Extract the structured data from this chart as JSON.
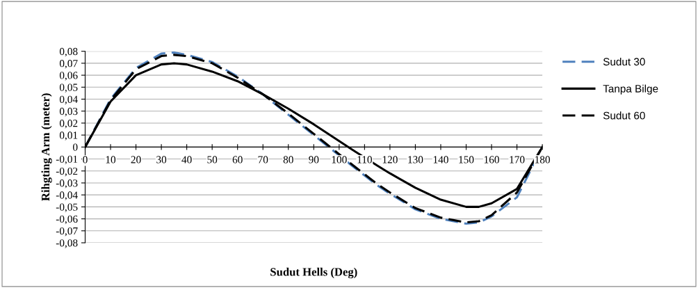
{
  "chart_data": {
    "type": "line",
    "xlabel": "Sudut Hells (Deg)",
    "ylabel": "Rihgting Arm (meter)",
    "x": [
      0,
      10,
      20,
      30,
      35,
      40,
      50,
      60,
      70,
      80,
      90,
      95,
      105,
      115,
      120,
      130,
      140,
      150,
      155,
      160,
      170,
      180
    ],
    "series": [
      {
        "name": "Sudut 30",
        "color": "#4f81bd",
        "line_style": "dashed",
        "values": [
          0,
          0.04,
          0.066,
          0.078,
          0.079,
          0.077,
          0.071,
          0.059,
          0.044,
          0.027,
          0.01,
          0.0015,
          -0.0155,
          -0.032,
          -0.039,
          -0.052,
          -0.06,
          -0.064,
          -0.063,
          -0.058,
          -0.042,
          0
        ]
      },
      {
        "name": "Tanpa Bilge",
        "color": "#000000",
        "line_style": "solid",
        "values": [
          0,
          0.038,
          0.06,
          0.069,
          0.07,
          0.069,
          0.063,
          0.055,
          0.044,
          0.032,
          0.019,
          0.012,
          -0.002,
          -0.0155,
          -0.022,
          -0.034,
          -0.044,
          -0.05,
          -0.05,
          -0.047,
          -0.035,
          0
        ]
      },
      {
        "name": "Sudut 60",
        "color": "#000000",
        "line_style": "dashed",
        "values": [
          0,
          0.039,
          0.065,
          0.076,
          0.077,
          0.076,
          0.07,
          0.058,
          0.044,
          0.028,
          0.011,
          0.0025,
          -0.0145,
          -0.031,
          -0.038,
          -0.051,
          -0.059,
          -0.063,
          -0.062,
          -0.057,
          -0.038,
          0
        ]
      }
    ],
    "xlim": [
      0,
      180
    ],
    "xticks": [
      0,
      10,
      20,
      30,
      40,
      50,
      60,
      70,
      80,
      90,
      100,
      110,
      120,
      130,
      140,
      150,
      160,
      170,
      180
    ],
    "ylim": [
      -0.08,
      0.08
    ],
    "yticks": [
      {
        "value": -0.08,
        "label": "-0,08"
      },
      {
        "value": -0.07,
        "label": "-0,07"
      },
      {
        "value": -0.06,
        "label": "-0,06"
      },
      {
        "value": -0.05,
        "label": "-0,05"
      },
      {
        "value": -0.04,
        "label": "-0,04"
      },
      {
        "value": -0.03,
        "label": "-0,03"
      },
      {
        "value": -0.02,
        "label": "-0,02"
      },
      {
        "value": -0.01,
        "label": "-0,01"
      },
      0,
      {
        "value": 0.01,
        "label": "0,01"
      },
      {
        "value": 0.02,
        "label": "0,02"
      },
      {
        "value": 0.03,
        "label": "0,03"
      },
      {
        "value": 0.04,
        "label": "0,04"
      },
      {
        "value": 0.05,
        "label": "0,05"
      },
      {
        "value": 0.06,
        "label": "0,06"
      },
      {
        "value": 0.07,
        "label": "0,07"
      },
      {
        "value": 0.08,
        "label": "0,08"
      }
    ],
    "grid": "y",
    "legend": "right",
    "marker": "none"
  }
}
